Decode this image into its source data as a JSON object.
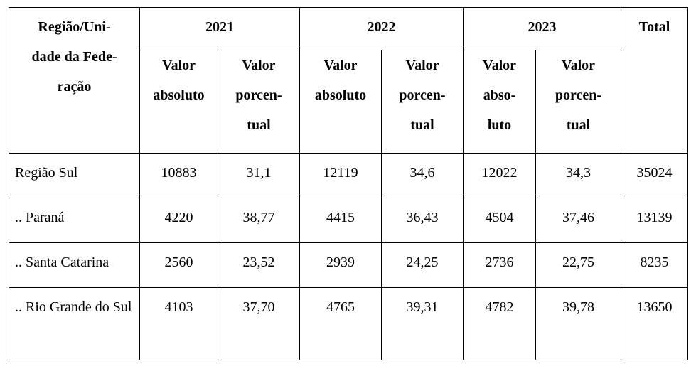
{
  "table": {
    "header": {
      "region": "Região/Uni-\ndade da Fede-\nração",
      "years": [
        "2021",
        "2022",
        "2023"
      ],
      "total": "Total",
      "subheaders": [
        "Valor\nabsoluto",
        "Valor\nporcen-\ntual",
        "Valor\nabsoluto",
        "Valor\nporcen-\ntual",
        "Valor\nabso-\nluto",
        "Valor\nporcen-\ntual"
      ]
    },
    "rows": [
      [
        "Região Sul",
        "10883",
        "31,1",
        "12119",
        "34,6",
        "12022",
        "34,3",
        "35024"
      ],
      [
        ".. Paraná",
        "4220",
        "38,77",
        "4415",
        "36,43",
        "4504",
        "37,46",
        "13139"
      ],
      [
        ".. Santa Catarina",
        "2560",
        "23,52",
        "2939",
        "24,25",
        "2736",
        "22,75",
        "8235"
      ],
      [
        ".. Rio Grande do Sul",
        "4103",
        "37,70",
        "4765",
        "39,31",
        "4782",
        "39,78",
        "13650"
      ]
    ]
  }
}
